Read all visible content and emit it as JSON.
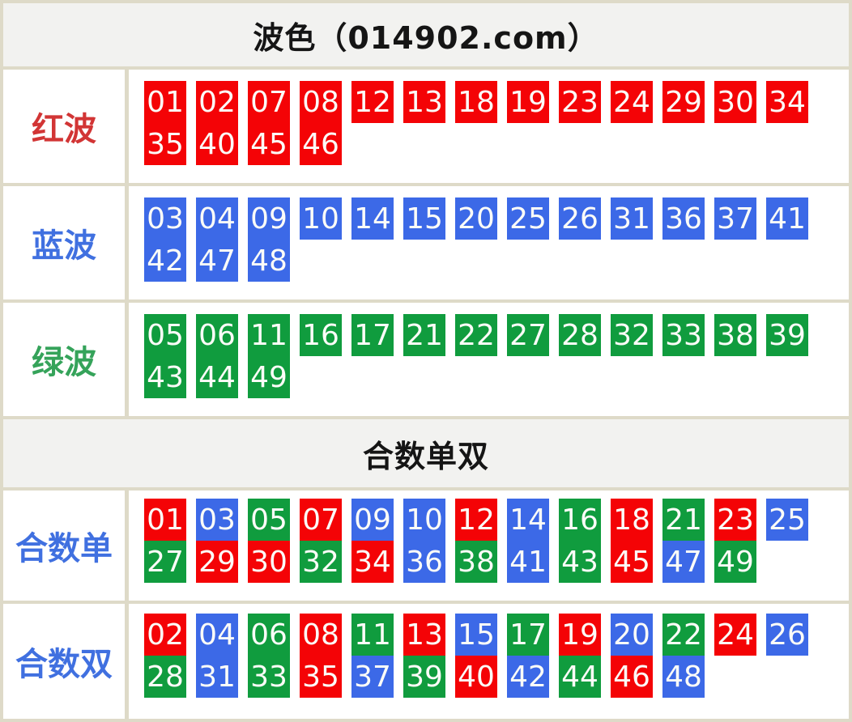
{
  "colors": {
    "red": "#f40306",
    "blue": "#3c69e7",
    "green": "#109c3e",
    "label_red": "#d23535",
    "label_blue": "#4070e0",
    "label_green": "#35a35a",
    "page_background": "#dedac8",
    "header_background": "#f2f2f0",
    "row_background": "#ffffff"
  },
  "sections": [
    {
      "type": "header",
      "text": "波色（014902.com）"
    },
    {
      "type": "numbers",
      "label": "红波",
      "label_color": "#d23535",
      "line1": [
        {
          "n": "01",
          "c": "red"
        },
        {
          "n": "02",
          "c": "red"
        },
        {
          "n": "07",
          "c": "red"
        },
        {
          "n": "08",
          "c": "red"
        },
        {
          "n": "12",
          "c": "red"
        },
        {
          "n": "13",
          "c": "red"
        },
        {
          "n": "18",
          "c": "red"
        },
        {
          "n": "19",
          "c": "red"
        },
        {
          "n": "23",
          "c": "red"
        },
        {
          "n": "24",
          "c": "red"
        },
        {
          "n": "29",
          "c": "red"
        },
        {
          "n": "30",
          "c": "red"
        },
        {
          "n": "34",
          "c": "red"
        }
      ],
      "line2": [
        {
          "n": "35",
          "c": "red"
        },
        {
          "n": "40",
          "c": "red"
        },
        {
          "n": "45",
          "c": "red"
        },
        {
          "n": "46",
          "c": "red"
        }
      ]
    },
    {
      "type": "numbers",
      "label": "蓝波",
      "label_color": "#4070e0",
      "line1": [
        {
          "n": "03",
          "c": "blue"
        },
        {
          "n": "04",
          "c": "blue"
        },
        {
          "n": "09",
          "c": "blue"
        },
        {
          "n": "10",
          "c": "blue"
        },
        {
          "n": "14",
          "c": "blue"
        },
        {
          "n": "15",
          "c": "blue"
        },
        {
          "n": "20",
          "c": "blue"
        },
        {
          "n": "25",
          "c": "blue"
        },
        {
          "n": "26",
          "c": "blue"
        },
        {
          "n": "31",
          "c": "blue"
        },
        {
          "n": "36",
          "c": "blue"
        },
        {
          "n": "37",
          "c": "blue"
        },
        {
          "n": "41",
          "c": "blue"
        }
      ],
      "line2": [
        {
          "n": "42",
          "c": "blue"
        },
        {
          "n": "47",
          "c": "blue"
        },
        {
          "n": "48",
          "c": "blue"
        }
      ]
    },
    {
      "type": "numbers",
      "label": "绿波",
      "label_color": "#35a35a",
      "line1": [
        {
          "n": "05",
          "c": "green"
        },
        {
          "n": "06",
          "c": "green"
        },
        {
          "n": "11",
          "c": "green"
        },
        {
          "n": "16",
          "c": "green"
        },
        {
          "n": "17",
          "c": "green"
        },
        {
          "n": "21",
          "c": "green"
        },
        {
          "n": "22",
          "c": "green"
        },
        {
          "n": "27",
          "c": "green"
        },
        {
          "n": "28",
          "c": "green"
        },
        {
          "n": "32",
          "c": "green"
        },
        {
          "n": "33",
          "c": "green"
        },
        {
          "n": "38",
          "c": "green"
        },
        {
          "n": "39",
          "c": "green"
        }
      ],
      "line2": [
        {
          "n": "43",
          "c": "green"
        },
        {
          "n": "44",
          "c": "green"
        },
        {
          "n": "49",
          "c": "green"
        }
      ]
    },
    {
      "type": "header",
      "text": "合数单双"
    },
    {
      "type": "numbers",
      "label": "合数单",
      "label_color": "#4070e0",
      "line1": [
        {
          "n": "01",
          "c": "red"
        },
        {
          "n": "03",
          "c": "blue"
        },
        {
          "n": "05",
          "c": "green"
        },
        {
          "n": "07",
          "c": "red"
        },
        {
          "n": "09",
          "c": "blue"
        },
        {
          "n": "10",
          "c": "blue"
        },
        {
          "n": "12",
          "c": "red"
        },
        {
          "n": "14",
          "c": "blue"
        },
        {
          "n": "16",
          "c": "green"
        },
        {
          "n": "18",
          "c": "red"
        },
        {
          "n": "21",
          "c": "green"
        },
        {
          "n": "23",
          "c": "red"
        },
        {
          "n": "25",
          "c": "blue"
        }
      ],
      "line2": [
        {
          "n": "27",
          "c": "green"
        },
        {
          "n": "29",
          "c": "red"
        },
        {
          "n": "30",
          "c": "red"
        },
        {
          "n": "32",
          "c": "green"
        },
        {
          "n": "34",
          "c": "red"
        },
        {
          "n": "36",
          "c": "blue"
        },
        {
          "n": "38",
          "c": "green"
        },
        {
          "n": "41",
          "c": "blue"
        },
        {
          "n": "43",
          "c": "green"
        },
        {
          "n": "45",
          "c": "red"
        },
        {
          "n": "47",
          "c": "blue"
        },
        {
          "n": "49",
          "c": "green"
        }
      ]
    },
    {
      "type": "numbers",
      "label": "合数双",
      "label_color": "#4070e0",
      "line1": [
        {
          "n": "02",
          "c": "red"
        },
        {
          "n": "04",
          "c": "blue"
        },
        {
          "n": "06",
          "c": "green"
        },
        {
          "n": "08",
          "c": "red"
        },
        {
          "n": "11",
          "c": "green"
        },
        {
          "n": "13",
          "c": "red"
        },
        {
          "n": "15",
          "c": "blue"
        },
        {
          "n": "17",
          "c": "green"
        },
        {
          "n": "19",
          "c": "red"
        },
        {
          "n": "20",
          "c": "blue"
        },
        {
          "n": "22",
          "c": "green"
        },
        {
          "n": "24",
          "c": "red"
        },
        {
          "n": "26",
          "c": "blue"
        }
      ],
      "line2": [
        {
          "n": "28",
          "c": "green"
        },
        {
          "n": "31",
          "c": "blue"
        },
        {
          "n": "33",
          "c": "green"
        },
        {
          "n": "35",
          "c": "red"
        },
        {
          "n": "37",
          "c": "blue"
        },
        {
          "n": "39",
          "c": "green"
        },
        {
          "n": "40",
          "c": "red"
        },
        {
          "n": "42",
          "c": "blue"
        },
        {
          "n": "44",
          "c": "green"
        },
        {
          "n": "46",
          "c": "red"
        },
        {
          "n": "48",
          "c": "blue"
        }
      ]
    }
  ]
}
